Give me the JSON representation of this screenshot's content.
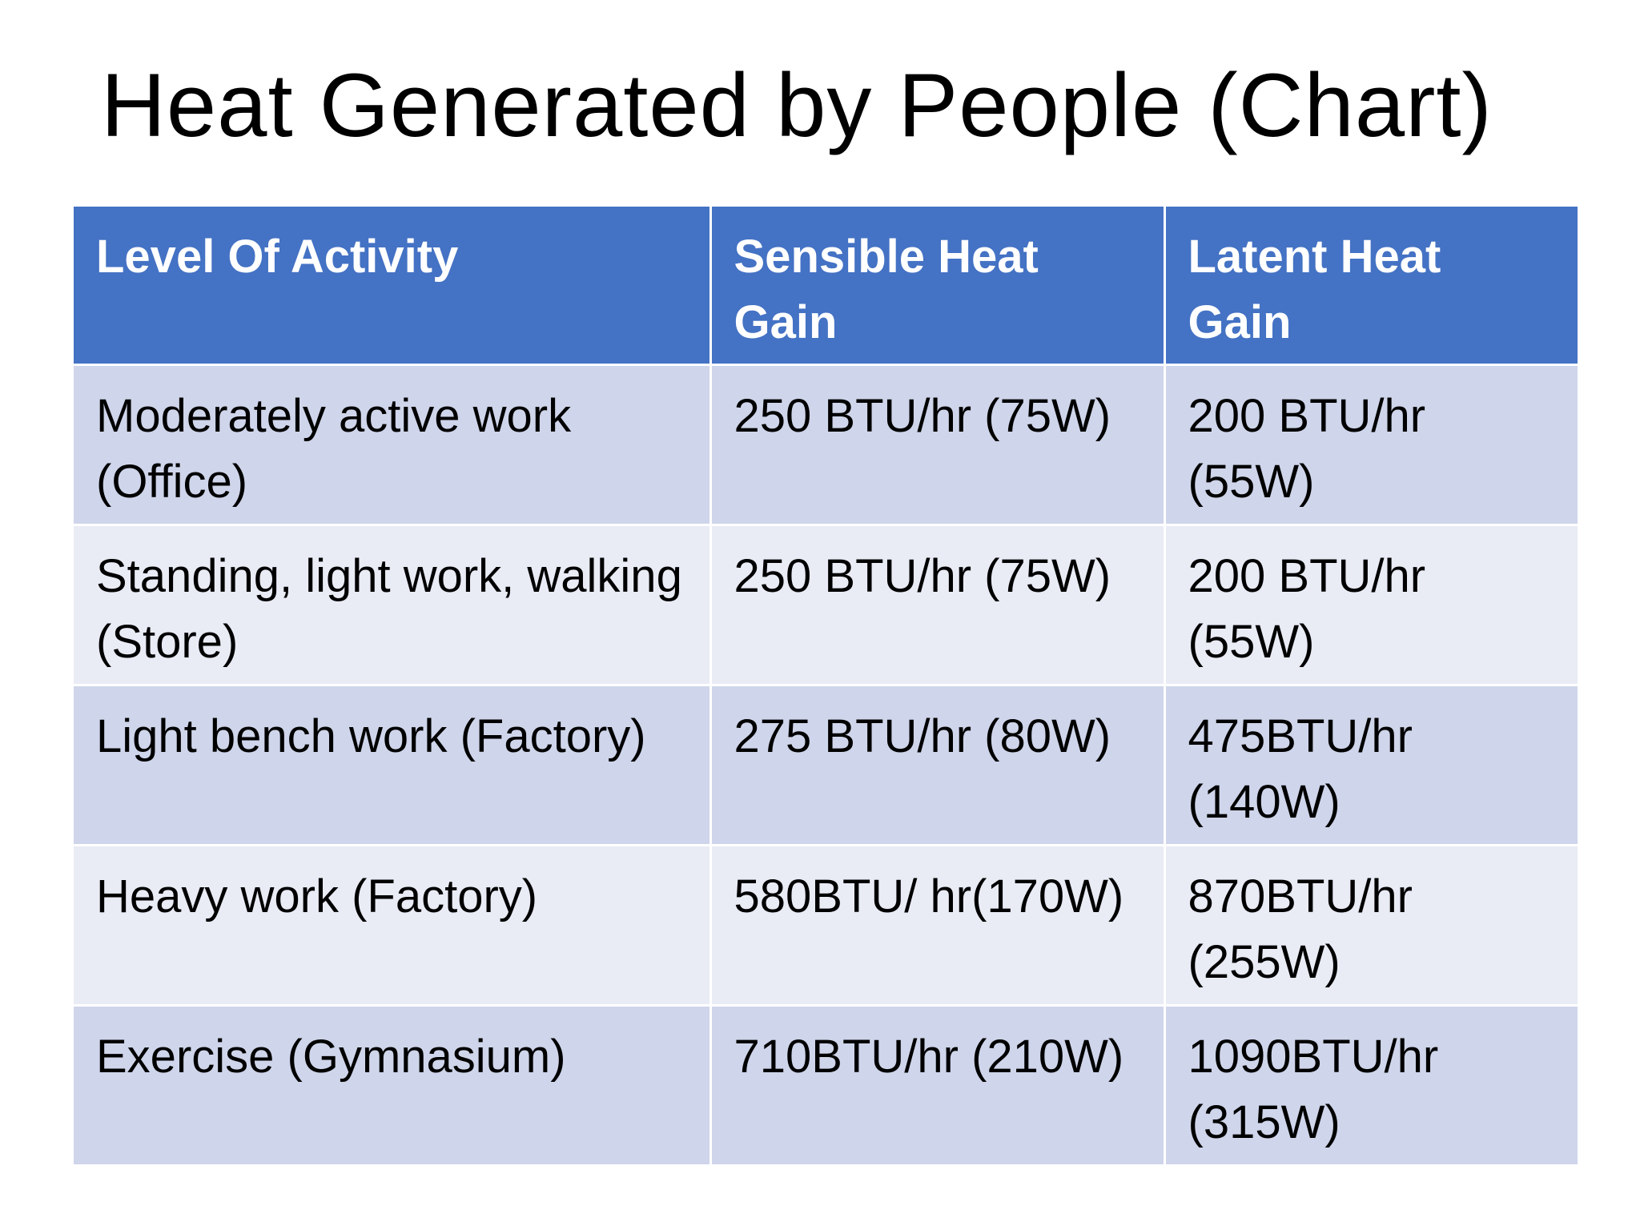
{
  "slide": {
    "title": "Heat Generated by People (Chart)"
  },
  "table": {
    "headers": [
      "Level Of Activity",
      "Sensible Heat Gain",
      "Latent Heat Gain"
    ],
    "rows": [
      [
        "Moderately active work (Office)",
        "250 BTU/hr (75W)",
        "200 BTU/hr (55W)"
      ],
      [
        "Standing, light work, walking (Store)",
        "250 BTU/hr (75W)",
        "200 BTU/hr (55W)"
      ],
      [
        "Light bench work (Factory)",
        "275 BTU/hr (80W)",
        "475BTU/hr (140W)"
      ],
      [
        "Heavy work (Factory)",
        "580BTU/ hr(170W)",
        "870BTU/hr (255W)"
      ],
      [
        "Exercise (Gymnasium)",
        "710BTU/hr (210W)",
        "1090BTU/hr (315W)"
      ]
    ]
  },
  "colors": {
    "header_bg": "#4472c4",
    "row_odd_bg": "#cfd5ea",
    "row_even_bg": "#e9ebf5"
  }
}
